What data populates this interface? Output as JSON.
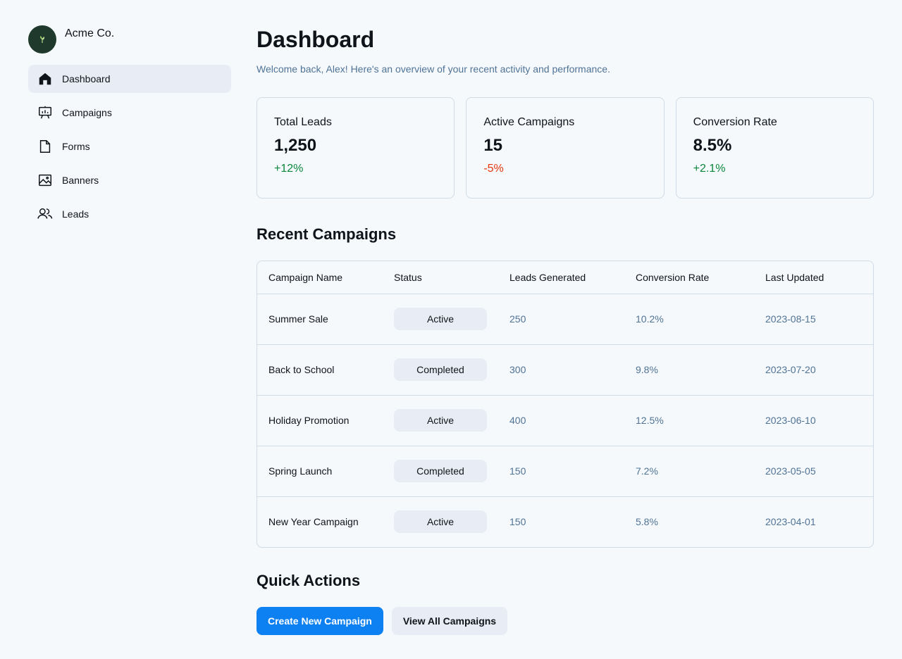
{
  "colors": {
    "accent": "#0d80f2",
    "positive": "#08873b",
    "negative": "#e7350b",
    "muted_text": "#4f7396",
    "background": "#f6f9fc",
    "surface_active": "#e8edf5"
  },
  "sidebar": {
    "brand_name": "Acme Co.",
    "items": [
      {
        "label": "Dashboard",
        "icon": "house-icon",
        "active": true
      },
      {
        "label": "Campaigns",
        "icon": "presentation-chart-icon",
        "active": false
      },
      {
        "label": "Forms",
        "icon": "file-icon",
        "active": false
      },
      {
        "label": "Banners",
        "icon": "image-icon",
        "active": false
      },
      {
        "label": "Leads",
        "icon": "users-icon",
        "active": false
      }
    ]
  },
  "header": {
    "title": "Dashboard",
    "subtitle": "Welcome back, Alex! Here's an overview of your recent activity and performance."
  },
  "stats": [
    {
      "label": "Total Leads",
      "value": "1,250",
      "change": "+12%",
      "trend": "positive"
    },
    {
      "label": "Active Campaigns",
      "value": "15",
      "change": "-5%",
      "trend": "negative"
    },
    {
      "label": "Conversion Rate",
      "value": "8.5%",
      "change": "+2.1%",
      "trend": "positive"
    }
  ],
  "recent": {
    "title": "Recent Campaigns",
    "columns": [
      "Campaign Name",
      "Status",
      "Leads Generated",
      "Conversion Rate",
      "Last Updated"
    ],
    "rows": [
      {
        "name": "Summer Sale",
        "status": "Active",
        "leads": "250",
        "conversion": "10.2%",
        "updated": "2023-08-15"
      },
      {
        "name": "Back to School",
        "status": "Completed",
        "leads": "300",
        "conversion": "9.8%",
        "updated": "2023-07-20"
      },
      {
        "name": "Holiday Promotion",
        "status": "Active",
        "leads": "400",
        "conversion": "12.5%",
        "updated": "2023-06-10"
      },
      {
        "name": "Spring Launch",
        "status": "Completed",
        "leads": "150",
        "conversion": "7.2%",
        "updated": "2023-05-05"
      },
      {
        "name": "New Year Campaign",
        "status": "Active",
        "leads": "150",
        "conversion": "5.8%",
        "updated": "2023-04-01"
      }
    ]
  },
  "quick_actions": {
    "title": "Quick Actions",
    "primary_label": "Create New Campaign",
    "secondary_label": "View All Campaigns"
  }
}
